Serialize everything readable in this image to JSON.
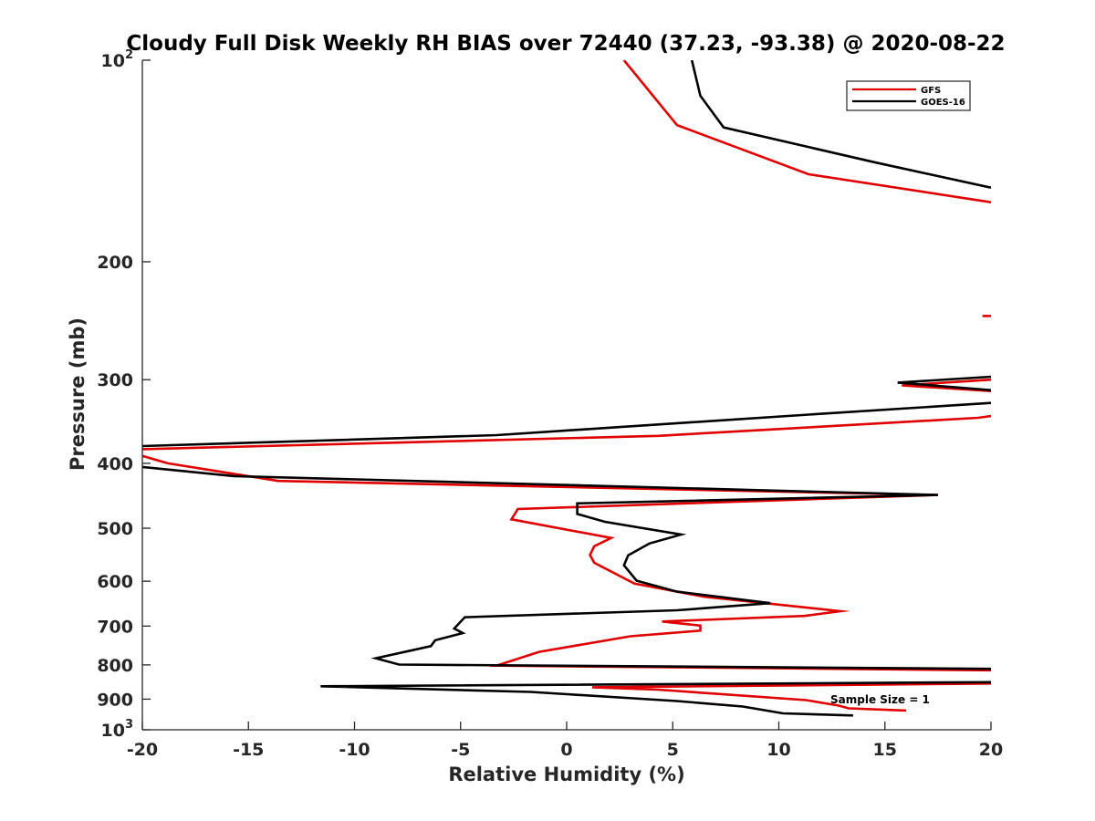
{
  "chart_data": {
    "type": "line",
    "title": "Cloudy Full Disk Weekly RH BIAS over 72440 (37.23, -93.38) @ 2020-08-22",
    "xlabel": "Relative Humidity (%)",
    "ylabel": "Pressure (mb)",
    "xlim": [
      -20,
      20
    ],
    "ylim": [
      100,
      1000
    ],
    "yscale": "log",
    "y_reversed": true,
    "x_ticks": [
      "-20",
      "-15",
      "-10",
      "-5",
      "0",
      "5",
      "10",
      "15",
      "20"
    ],
    "y_ticks": [
      {
        "value": 100,
        "base": "10",
        "exp": "2"
      },
      {
        "value": 200,
        "label": "200"
      },
      {
        "value": 300,
        "label": "300"
      },
      {
        "value": 400,
        "label": "400"
      },
      {
        "value": 500,
        "label": "500"
      },
      {
        "value": 600,
        "label": "600"
      },
      {
        "value": 700,
        "label": "700"
      },
      {
        "value": 800,
        "label": "800"
      },
      {
        "value": 900,
        "label": "900"
      },
      {
        "value": 1000,
        "base": "10",
        "exp": "3"
      }
    ],
    "grid": false,
    "legend_position": "top-right",
    "annotation": "Sample Size = 1",
    "series": [
      {
        "name": "GFS",
        "color": "#e00000",
        "segments": [
          [
            [
              2.7,
              100
            ],
            [
              5.2,
              125
            ],
            [
              11.4,
              148
            ],
            [
              20,
              163
            ]
          ],
          [
            [
              19.6,
              241
            ],
            [
              20,
              241
            ]
          ],
          [
            [
              20,
              300
            ],
            [
              15.8,
              306
            ],
            [
              20,
              312
            ]
          ],
          [
            [
              20,
              340
            ],
            [
              19.4,
              342
            ],
            [
              4.3,
              364
            ],
            [
              -20,
              381
            ]
          ],
          [
            [
              -20,
              390
            ],
            [
              -18.8,
              400
            ],
            [
              -13.6,
              425
            ],
            [
              17.5,
              446
            ],
            [
              -2.3,
              468
            ],
            [
              -2.6,
              485
            ],
            [
              2.1,
              517
            ],
            [
              1.3,
              532
            ],
            [
              1.1,
              548
            ],
            [
              1.3,
              563
            ],
            [
              3.2,
              605
            ],
            [
              6.5,
              633
            ],
            [
              12.9,
              665
            ],
            [
              11.2,
              676
            ],
            [
              4.5,
              689
            ],
            [
              6.3,
              699
            ],
            [
              6.3,
              711
            ],
            [
              3,
              725
            ],
            [
              -1.3,
              765
            ],
            [
              -3.3,
              802
            ],
            [
              20,
              815
            ]
          ],
          [
            [
              20,
              853
            ],
            [
              1.2,
              864
            ],
            [
              4.3,
              871
            ],
            [
              11.3,
              903
            ],
            [
              12.8,
              920
            ],
            [
              13.3,
              929
            ],
            [
              16,
              936
            ]
          ]
        ]
      },
      {
        "name": "GOES-16",
        "color": "#000000",
        "segments": [
          [
            [
              5.9,
              100
            ],
            [
              6.3,
              113
            ],
            [
              7.4,
              126
            ],
            [
              14.5,
              142
            ],
            [
              20,
              155
            ]
          ],
          [
            [
              20,
              297
            ],
            [
              15.6,
              303
            ],
            [
              20,
              311
            ]
          ],
          [
            [
              20,
              325
            ],
            [
              11.6,
              338
            ],
            [
              -3.3,
              363
            ],
            [
              -20,
              377
            ]
          ],
          [
            [
              -20,
              405
            ],
            [
              -15.7,
              418
            ],
            [
              17.5,
              446
            ],
            [
              0.5,
              459
            ],
            [
              0.5,
              476
            ],
            [
              1.8,
              489
            ],
            [
              5.4,
              511
            ],
            [
              3.9,
              527
            ],
            [
              2.9,
              549
            ],
            [
              2.7,
              568
            ],
            [
              3.3,
              599
            ],
            [
              5.2,
              622
            ],
            [
              9.6,
              647
            ],
            [
              5.2,
              663
            ],
            [
              -4.8,
              679
            ],
            [
              -5.3,
              706
            ],
            [
              -4.9,
              717
            ],
            [
              -6.2,
              735
            ],
            [
              -6.4,
              750
            ],
            [
              -9,
              782
            ],
            [
              -7.9,
              799
            ],
            [
              20,
              811
            ]
          ],
          [
            [
              20,
              849
            ],
            [
              -11.6,
              861
            ],
            [
              -1.7,
              878
            ],
            [
              5.2,
              906
            ],
            [
              8.3,
              923
            ],
            [
              10.2,
              945
            ],
            [
              13.5,
              952
            ]
          ]
        ]
      }
    ]
  }
}
